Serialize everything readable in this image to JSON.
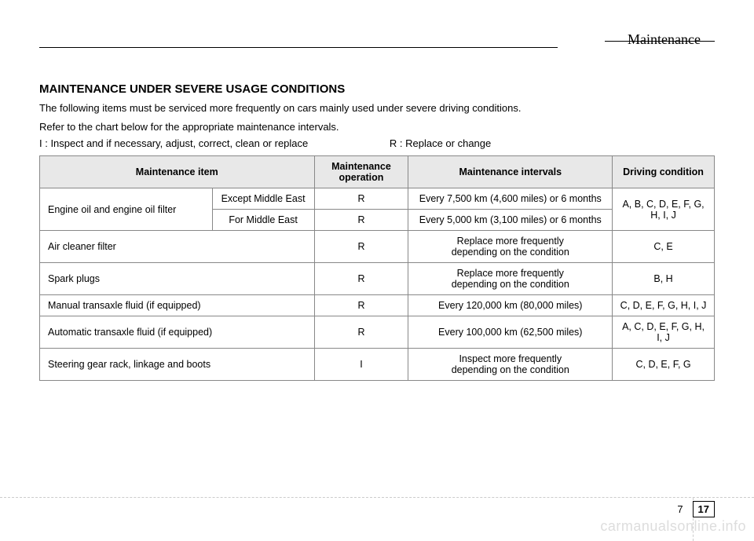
{
  "header": {
    "section_title": "Maintenance"
  },
  "heading": "MAINTENANCE UNDER SEVERE USAGE CONDITIONS",
  "intro": {
    "line1": "The following items must be serviced more frequently on cars mainly used under severe driving conditions.",
    "line2": "Refer to the chart below for the appropriate maintenance intervals.",
    "legend_i": "I : Inspect and if necessary, adjust, correct, clean or replace",
    "legend_r": "R : Replace or change"
  },
  "table": {
    "headers": {
      "item": "Maintenance item",
      "operation": "Maintenance\noperation",
      "intervals": "Maintenance intervals",
      "condition": "Driving condition"
    },
    "rows": {
      "r1": {
        "item": "Engine oil and engine oil filter",
        "sub1": "Except Middle East",
        "op1": "R",
        "int1": "Every 7,500 km (4,600 miles) or 6 months",
        "sub2": "For Middle East",
        "op2": "R",
        "int2": "Every 5,000 km (3,100 miles) or 6 months",
        "cond": "A, B, C, D, E, F, G, H, I, J"
      },
      "r2": {
        "item": "Air cleaner filter",
        "op": "R",
        "int": "Replace more frequently\ndepending on the condition",
        "cond": "C, E"
      },
      "r3": {
        "item": "Spark plugs",
        "op": "R",
        "int": "Replace more frequently\ndepending on the condition",
        "cond": "B, H"
      },
      "r4": {
        "item": "Manual transaxle fluid (if equipped)",
        "op": "R",
        "int": "Every 120,000 km (80,000 miles)",
        "cond": "C, D, E, F, G, H, I, J"
      },
      "r5": {
        "item": "Automatic transaxle fluid (if equipped)",
        "op": "R",
        "int": "Every 100,000 km (62,500 miles)",
        "cond": "A, C, D, E, F, G, H, I, J"
      },
      "r6": {
        "item": "Steering gear rack, linkage and boots",
        "op": "I",
        "int": "Inspect more frequently\ndepending on the condition",
        "cond": "C, D, E, F, G"
      }
    }
  },
  "footer": {
    "chapter": "7",
    "page": "17"
  },
  "watermark": "carmanualsonline.info",
  "styling": {
    "background_color": "#ffffff",
    "text_color": "#000000",
    "header_bg": "#e8e8e8",
    "border_color": "#888888",
    "watermark_color": "#dddddd",
    "body_font": "Arial",
    "header_font": "Georgia",
    "body_fontsize": 13,
    "table_fontsize": 12.5,
    "heading_fontsize": 15
  }
}
